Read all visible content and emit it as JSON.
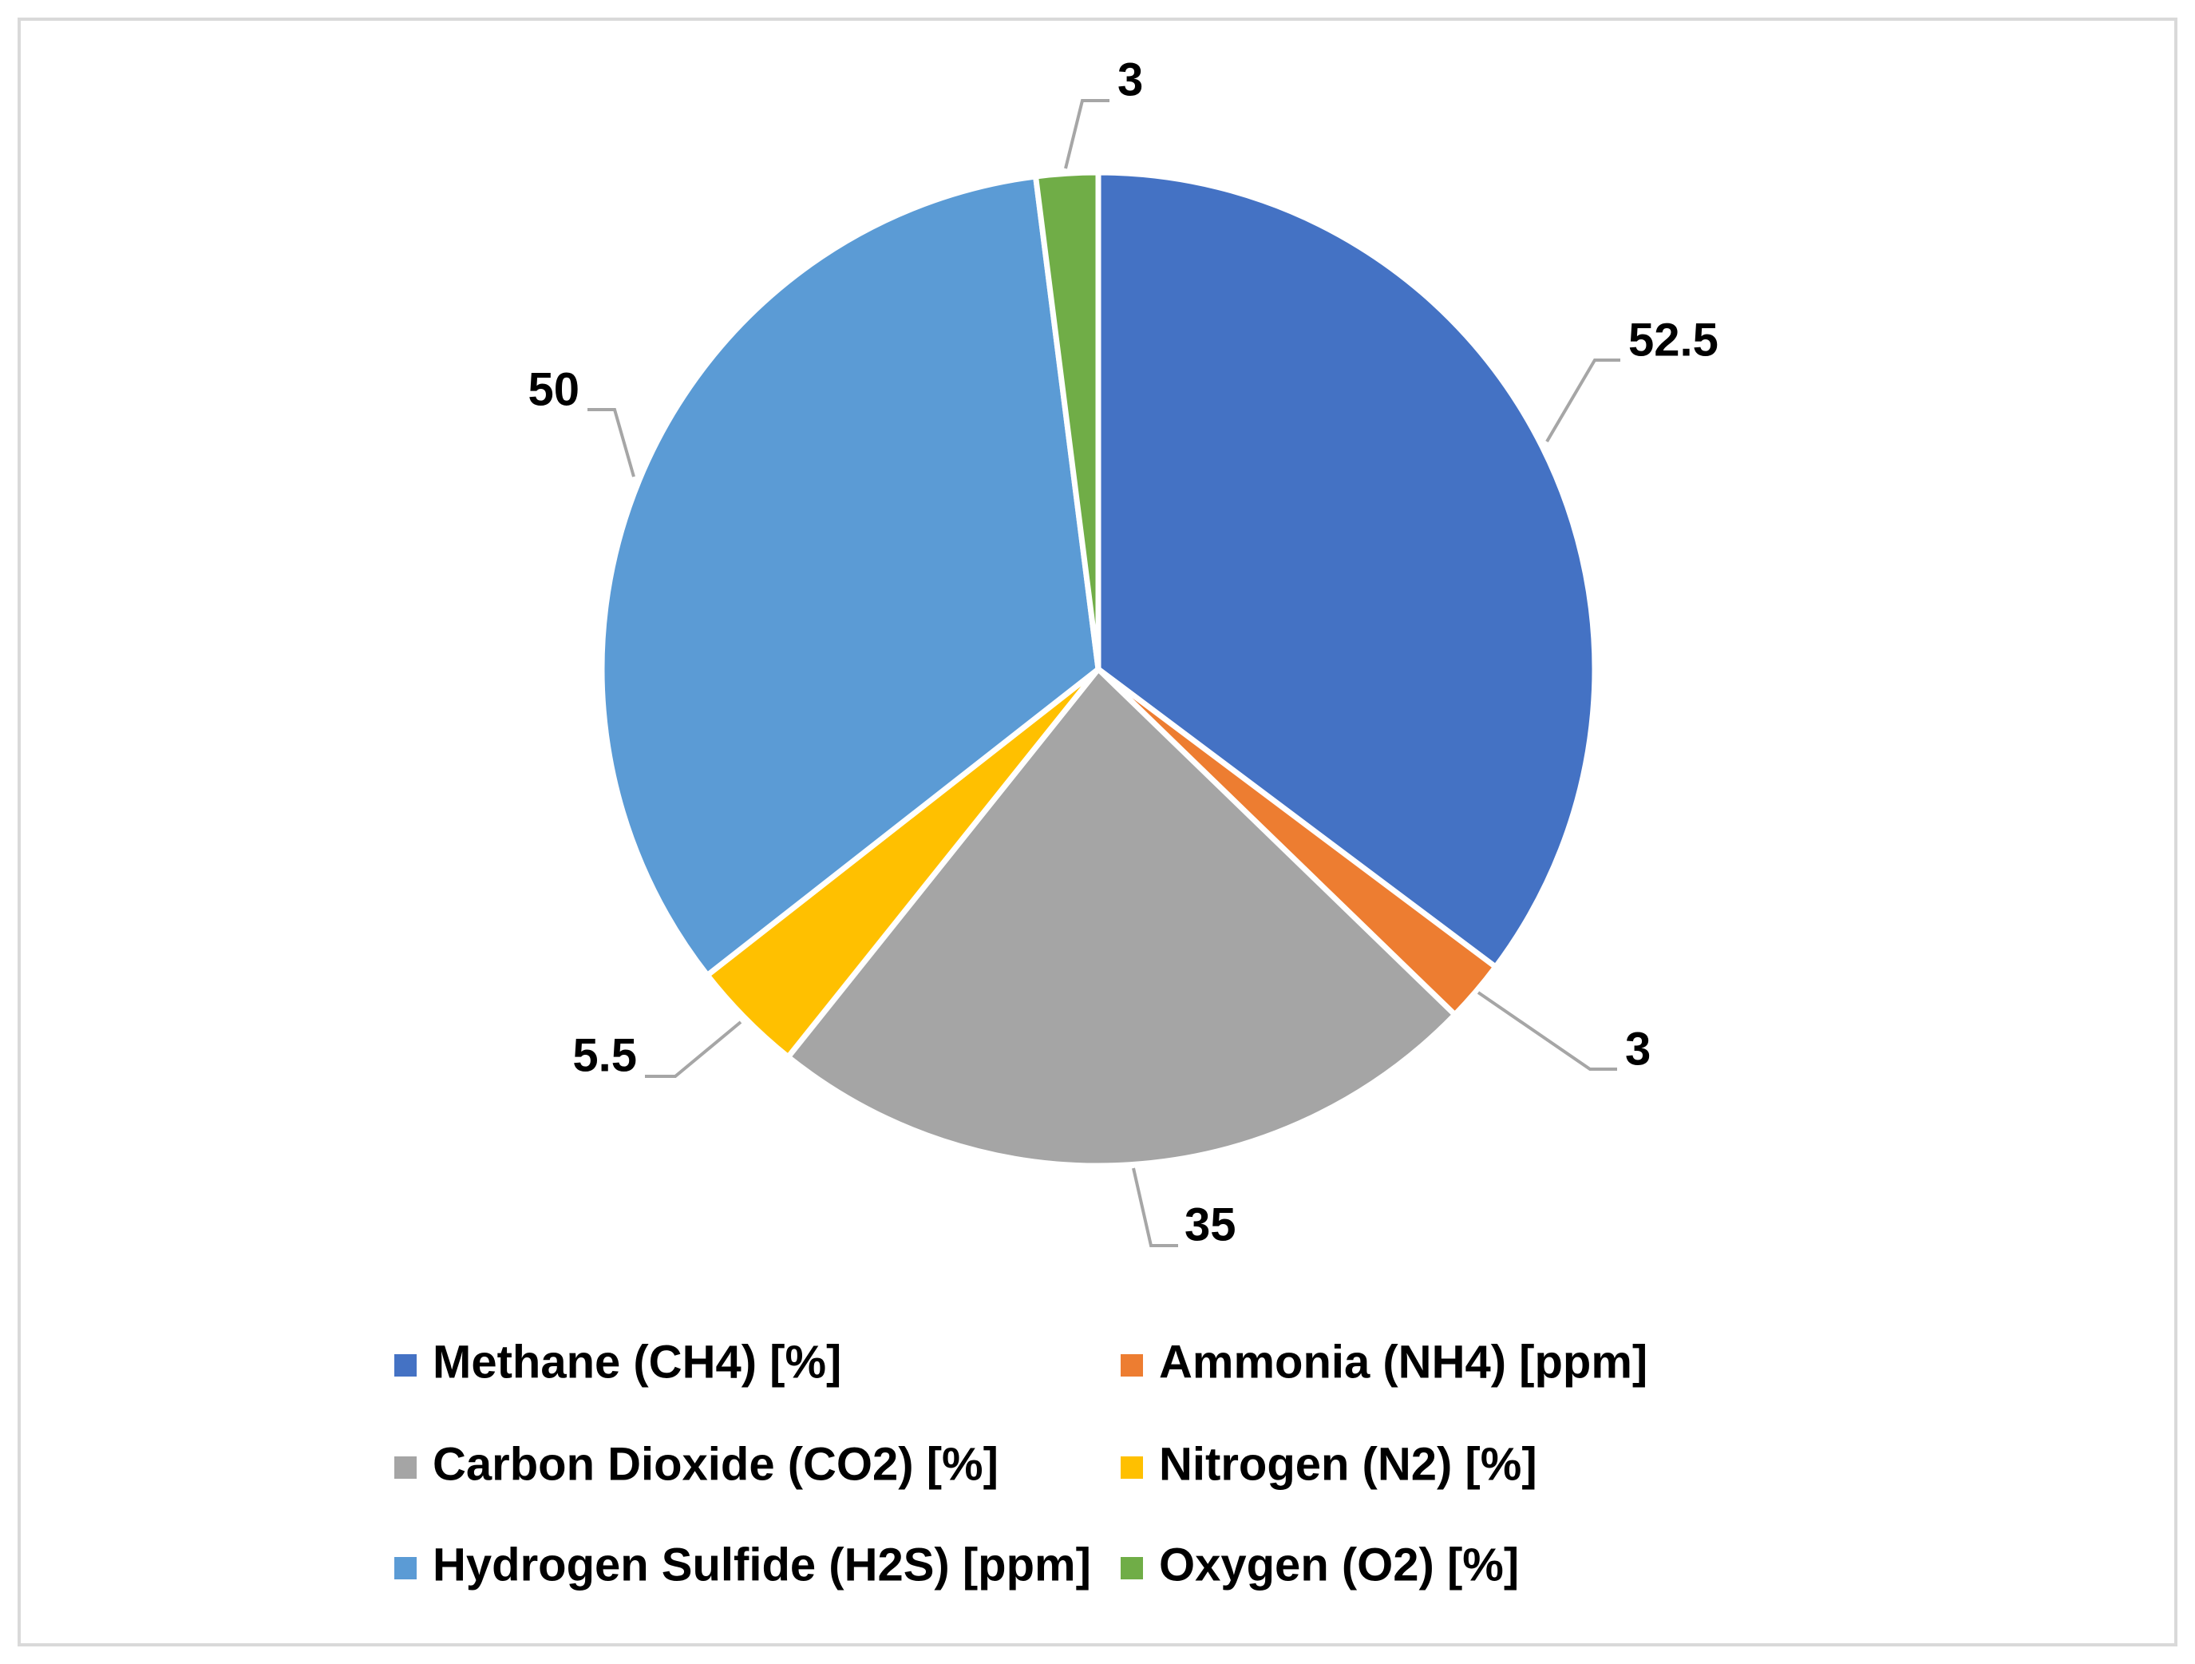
{
  "chart_data": {
    "type": "pie",
    "title": "",
    "categories": [
      "Methane (CH4) [%]",
      "Ammonia (NH4) [ppm]",
      "Carbon Dioxide (CO2) [%]",
      "Nitrogen (N2) [%]",
      "Hydrogen Sulfide (H2S) [ppm]",
      "Oxygen (O2) [%]"
    ],
    "values": [
      52.5,
      3,
      35,
      5.5,
      50,
      3
    ],
    "data_labels": [
      "52.5",
      "3",
      "35",
      "5.5",
      "50",
      "3"
    ],
    "colors": [
      "#4472C4",
      "#ED7D31",
      "#A5A5A5",
      "#FFC000",
      "#5B9BD5",
      "#70AD47"
    ],
    "start_angle": "12 o'clock",
    "direction": "clockwise",
    "legend_position": "bottom"
  }
}
